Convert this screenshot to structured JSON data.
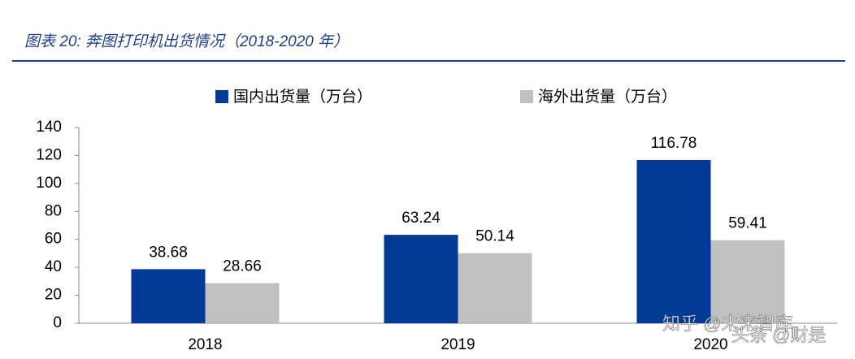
{
  "chart_data": {
    "type": "bar",
    "title": "图表 20:  奔图打印机出货情况（2018-2020 年）",
    "categories": [
      "2018",
      "2019",
      "2020"
    ],
    "series": [
      {
        "name": "国内出货量（万台）",
        "color": "#003a96",
        "values": [
          38.68,
          63.24,
          116.78
        ]
      },
      {
        "name": "海外出货量（万台）",
        "color": "#c0c0c0",
        "values": [
          28.66,
          50.14,
          59.41
        ]
      }
    ],
    "ylim": [
      0,
      140
    ],
    "yticks": [
      0,
      20,
      40,
      60,
      80,
      100,
      120,
      140
    ],
    "grid": false,
    "legend": "top",
    "watermarks": [
      "知乎 @未来智库",
      "头条 @财是"
    ]
  }
}
